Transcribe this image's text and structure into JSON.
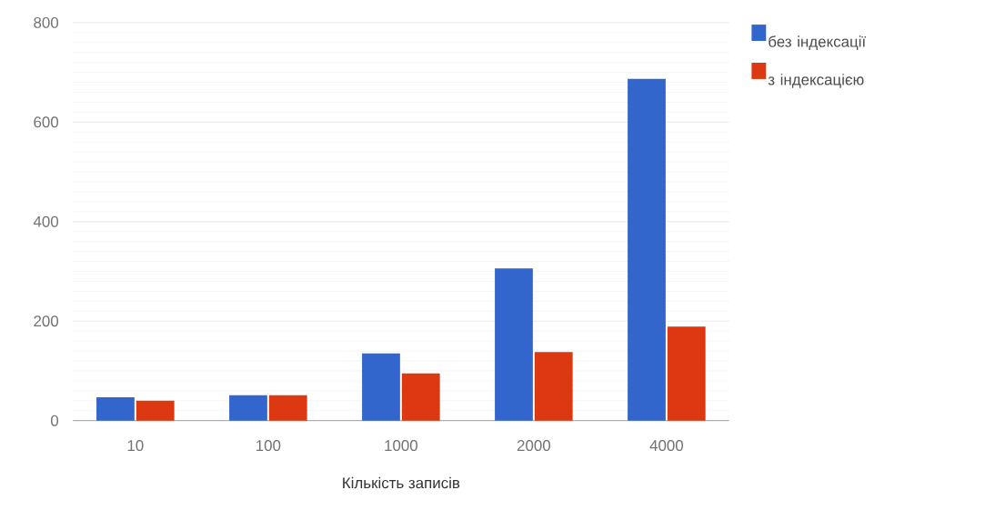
{
  "chart_data": {
    "type": "bar",
    "xlabel": "Кількість записів",
    "categories": [
      "10",
      "100",
      "1000",
      "2000",
      "4000"
    ],
    "series": [
      {
        "name": "без індексації",
        "color": "#3366cc",
        "values": [
          47,
          51,
          135,
          306,
          687
        ]
      },
      {
        "name": "з індексацією",
        "color": "#dc3912",
        "values": [
          40,
          51,
          95,
          138,
          189
        ]
      }
    ],
    "ylim": [
      0,
      800
    ],
    "yticks": [
      0,
      200,
      400,
      600,
      800
    ],
    "grid": "y",
    "legend": "top right"
  }
}
